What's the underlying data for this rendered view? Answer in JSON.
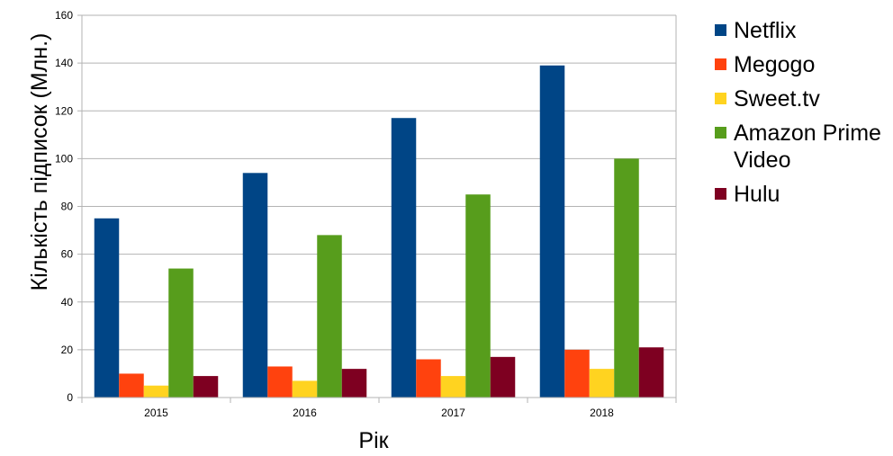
{
  "chart_data": {
    "type": "bar",
    "title": "",
    "xlabel": "Рік",
    "ylabel": "Кількість підписок (Млн.)",
    "categories": [
      "2015",
      "2016",
      "2017",
      "2018"
    ],
    "ylim": [
      0,
      160
    ],
    "yticks": [
      0,
      20,
      40,
      60,
      80,
      100,
      120,
      140,
      160
    ],
    "grid": true,
    "legend_position": "right",
    "series": [
      {
        "name": "Netflix",
        "color": "#004586",
        "values": [
          75,
          94,
          117,
          139
        ]
      },
      {
        "name": "Megogo",
        "color": "#ff420e",
        "values": [
          10,
          13,
          16,
          20
        ]
      },
      {
        "name": "Sweet.tv",
        "color": "#ffd320",
        "values": [
          5,
          7,
          9,
          12
        ]
      },
      {
        "name": "Amazon Prime Video",
        "color": "#579d1c",
        "values": [
          54,
          68,
          85,
          100
        ]
      },
      {
        "name": "Hulu",
        "color": "#7e0021",
        "values": [
          9,
          12,
          17,
          21
        ]
      }
    ]
  }
}
